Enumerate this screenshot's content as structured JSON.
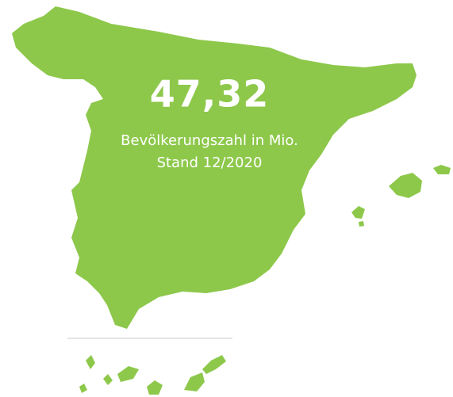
{
  "headline": {
    "value": "47,32",
    "label": "Bevölkerungszahl in Mio.",
    "note": "Stand 12/2020"
  }
}
